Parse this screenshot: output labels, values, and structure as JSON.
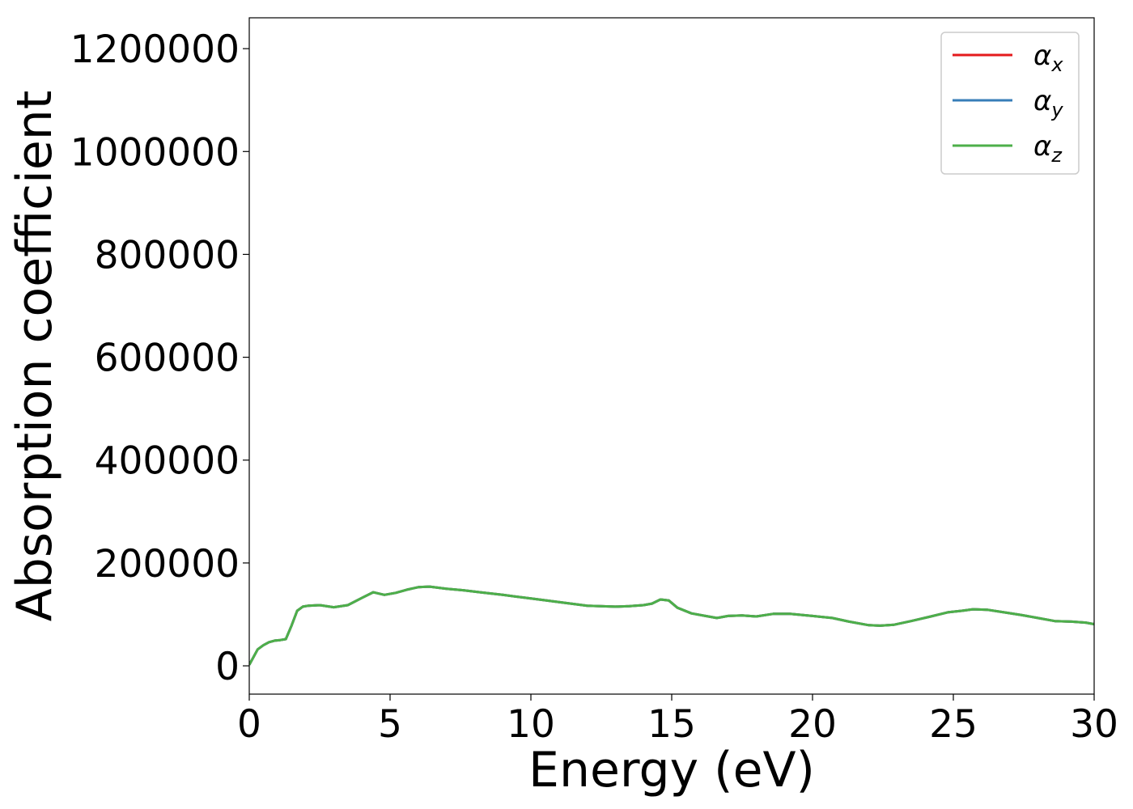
{
  "chart_data": {
    "type": "line",
    "title": "",
    "xlabel": "Energy (eV)",
    "ylabel": "Absorption coefficient",
    "xlim": [
      0,
      30
    ],
    "ylim": [
      -55000,
      1260000
    ],
    "x_ticks": [
      0,
      5,
      10,
      15,
      20,
      25,
      30
    ],
    "x_tick_labels": [
      "0",
      "5",
      "10",
      "15",
      "20",
      "25",
      "30"
    ],
    "y_ticks": [
      0,
      200000,
      400000,
      600000,
      800000,
      1000000,
      1200000
    ],
    "y_tick_labels": [
      "0",
      "200000",
      "400000",
      "600000",
      "800000",
      "1000000",
      "1200000"
    ],
    "grid": false,
    "legend_position": "top-right",
    "x": [
      0,
      0.1,
      0.3,
      0.5,
      0.7,
      0.9,
      1.1,
      1.3,
      1.5,
      1.7,
      1.9,
      2.1,
      2.5,
      3.0,
      3.5,
      4.0,
      4.4,
      4.8,
      5.2,
      5.6,
      6.0,
      6.4,
      7.0,
      7.6,
      8.2,
      9.0,
      10.0,
      11.0,
      12.0,
      13.0,
      13.5,
      14.0,
      14.3,
      14.6,
      14.9,
      15.2,
      15.7,
      16.2,
      16.6,
      17.0,
      17.5,
      18.0,
      18.6,
      19.2,
      20.0,
      20.7,
      21.3,
      22.0,
      22.4,
      22.9,
      23.5,
      24.2,
      24.8,
      25.3,
      25.7,
      26.2,
      26.8,
      27.4,
      28.0,
      28.6,
      29.2,
      29.7,
      30.0
    ],
    "series": [
      {
        "name": "α_x",
        "color": "#e41a1c",
        "values": [
          2000,
          12000,
          32000,
          40000,
          46000,
          49000,
          50000,
          52000,
          78000,
          107000,
          115000,
          117000,
          118000,
          114000,
          118000,
          132000,
          143000,
          138000,
          142000,
          148000,
          153000,
          154000,
          150000,
          147000,
          143000,
          138000,
          131000,
          124000,
          117000,
          115000,
          116000,
          118000,
          121000,
          129000,
          127000,
          113000,
          102000,
          97000,
          93000,
          97000,
          98000,
          96000,
          101000,
          101000,
          97000,
          93000,
          86000,
          79000,
          78000,
          80000,
          87000,
          96000,
          104000,
          107000,
          110000,
          109000,
          104000,
          99000,
          93000,
          87000,
          86000,
          84000,
          81000
        ]
      },
      {
        "name": "α_y",
        "color": "#377eb8",
        "values": [
          2000,
          12000,
          32000,
          40000,
          46000,
          49000,
          50000,
          52000,
          78000,
          107000,
          115000,
          117000,
          118000,
          114000,
          118000,
          132000,
          143000,
          138000,
          142000,
          148000,
          153000,
          154000,
          150000,
          147000,
          143000,
          138000,
          131000,
          124000,
          117000,
          115000,
          116000,
          118000,
          121000,
          129000,
          127000,
          113000,
          102000,
          97000,
          93000,
          97000,
          98000,
          96000,
          101000,
          101000,
          97000,
          93000,
          86000,
          79000,
          78000,
          80000,
          87000,
          96000,
          104000,
          107000,
          110000,
          109000,
          104000,
          99000,
          93000,
          87000,
          86000,
          84000,
          81000
        ]
      },
      {
        "name": "α_z",
        "color": "#4daf4a",
        "values": [
          2000,
          12000,
          32000,
          40000,
          46000,
          49000,
          50000,
          52000,
          78000,
          107000,
          115000,
          117000,
          118000,
          114000,
          118000,
          132000,
          143000,
          138000,
          142000,
          148000,
          153000,
          154000,
          150000,
          147000,
          143000,
          138000,
          131000,
          124000,
          117000,
          115000,
          116000,
          118000,
          121000,
          129000,
          127000,
          113000,
          102000,
          97000,
          93000,
          97000,
          98000,
          96000,
          101000,
          101000,
          97000,
          93000,
          86000,
          79000,
          78000,
          80000,
          87000,
          96000,
          104000,
          107000,
          110000,
          109000,
          104000,
          99000,
          93000,
          87000,
          86000,
          84000,
          81000
        ]
      }
    ],
    "legend": [
      {
        "symbol": "α",
        "subscript": "x",
        "color": "#e41a1c"
      },
      {
        "symbol": "α",
        "subscript": "y",
        "color": "#377eb8"
      },
      {
        "symbol": "α",
        "subscript": "z",
        "color": "#4daf4a"
      }
    ]
  }
}
